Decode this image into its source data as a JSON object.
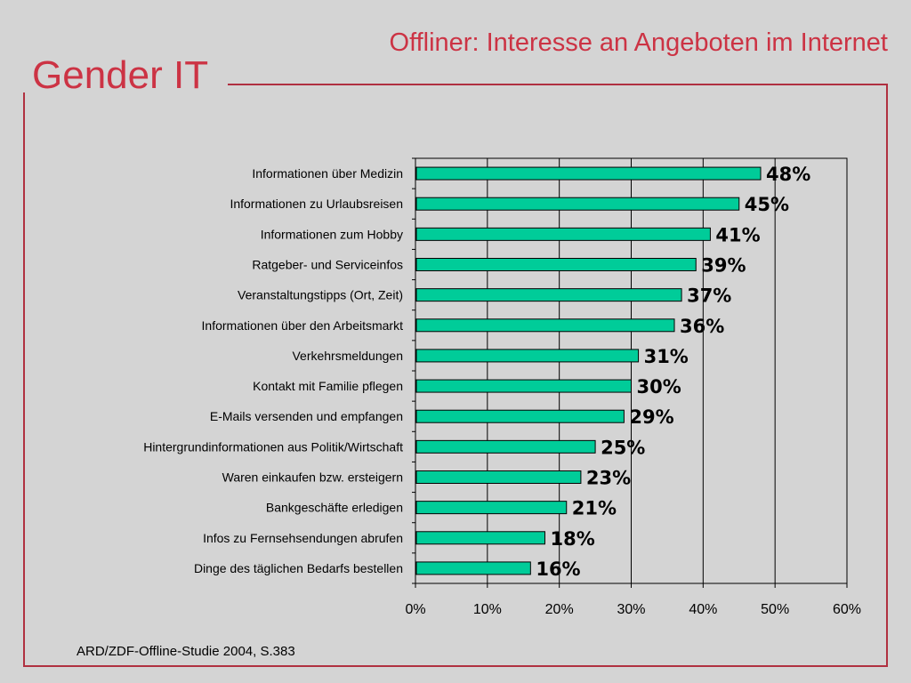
{
  "slide": {
    "title": "Offliner: Interesse an Angeboten im Internet",
    "brand": "Gender IT",
    "source": "ARD/ZDF-Offline-Studie 2004, S.383"
  },
  "colors": {
    "bar_fill": "#00cc99",
    "accent": "#cc3344",
    "background": "#d4d4d4"
  },
  "chart_data": {
    "type": "bar",
    "orientation": "horizontal",
    "categories": [
      "Informationen über Medizin",
      "Informationen zu Urlaubsreisen",
      "Informationen zum Hobby",
      "Ratgeber- und Serviceinfos",
      "Veranstaltungstipps (Ort, Zeit)",
      "Informationen über den Arbeitsmarkt",
      "Verkehrsmeldungen",
      "Kontakt mit Familie pflegen",
      "E-Mails versenden und empfangen",
      "Hintergrundinformationen aus Politik/Wirtschaft",
      "Waren einkaufen bzw. ersteigern",
      "Bankgeschäfte erledigen",
      "Infos zu Fernsehsendungen abrufen",
      "Dinge des täglichen Bedarfs bestellen"
    ],
    "values": [
      48,
      45,
      41,
      39,
      37,
      36,
      31,
      30,
      29,
      25,
      23,
      21,
      18,
      16
    ],
    "data_labels": [
      "48%",
      "45%",
      "41%",
      "39%",
      "37%",
      "36%",
      "31%",
      "30%",
      "29%",
      "25%",
      "23%",
      "21%",
      "18%",
      "16%"
    ],
    "xlim": [
      0,
      60
    ],
    "xticks": [
      0,
      10,
      20,
      30,
      40,
      50,
      60
    ],
    "xtick_labels": [
      "0%",
      "10%",
      "20%",
      "30%",
      "40%",
      "50%",
      "60%"
    ],
    "grid": true,
    "legend": "none"
  }
}
